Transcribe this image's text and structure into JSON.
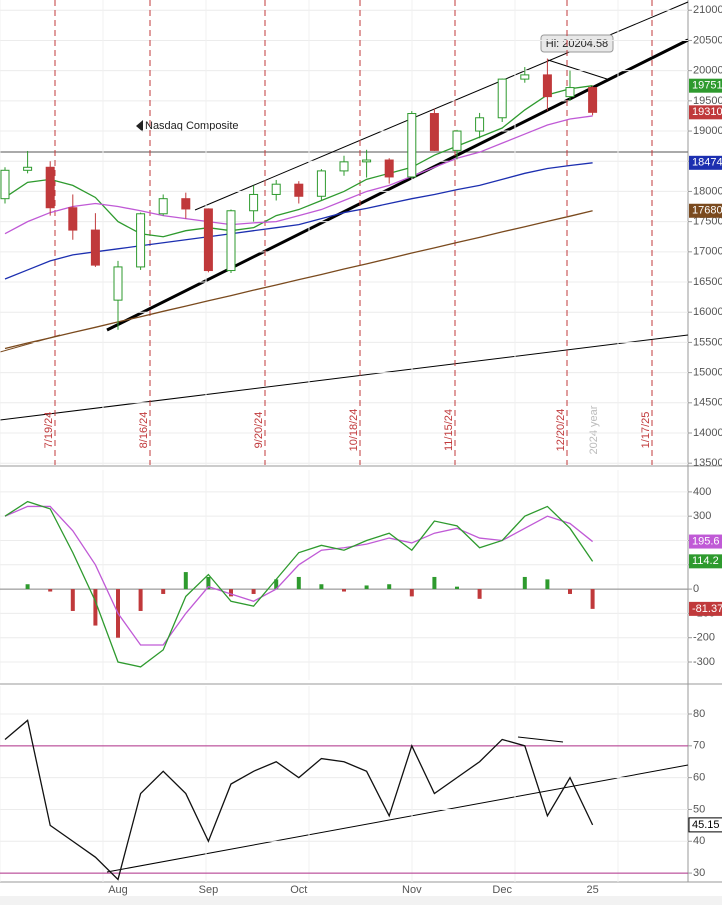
{
  "chart_data": [
    {
      "type": "candlestick",
      "title": "Nasdaq Composite",
      "annotation": "Hi: 20204.58",
      "period_label": "2024 year",
      "event_labels": [
        "7/19/24",
        "8/16/24",
        "9/20/24",
        "10/18/24",
        "11/15/24",
        "12/20/24",
        "1/17/25"
      ],
      "categories": [
        null,
        null,
        null,
        null,
        null,
        "Aug",
        null,
        null,
        null,
        "Sep",
        null,
        null,
        null,
        "Oct",
        null,
        null,
        null,
        null,
        "Nov",
        null,
        null,
        null,
        "Dec",
        null,
        null,
        null,
        "25"
      ],
      "open": [
        17880,
        18350,
        18400,
        17730,
        17360,
        16200,
        16750,
        17630,
        17880,
        17710,
        16690,
        17680,
        17950,
        18120,
        17920,
        18340,
        18490,
        18520,
        18240,
        19290,
        18680,
        19000,
        19220,
        19860,
        19930,
        19570,
        19720
      ],
      "high": [
        18400,
        18670,
        18500,
        17950,
        17640,
        16850,
        17650,
        17950,
        17980,
        17720,
        17700,
        18100,
        18190,
        18170,
        18370,
        18590,
        18690,
        18550,
        19330,
        19370,
        19020,
        19300,
        19870,
        20060,
        20200,
        20000,
        19740
      ],
      "low": [
        17800,
        18300,
        17600,
        17200,
        16750,
        15710,
        16700,
        17600,
        17550,
        16660,
        16650,
        17500,
        17850,
        17800,
        17850,
        18260,
        18230,
        18130,
        18220,
        18670,
        18530,
        18880,
        19150,
        19800,
        19340,
        19500,
        19260
      ],
      "close": [
        18350,
        18400,
        17730,
        17360,
        16780,
        16750,
        17630,
        17880,
        17710,
        16690,
        17680,
        17950,
        18120,
        17920,
        18340,
        18490,
        18520,
        18240,
        19290,
        18680,
        19000,
        19220,
        19860,
        19930,
        19570,
        19720,
        19310
      ],
      "color_up": "#2e9a2e",
      "color_down": "#c0393b",
      "series": [
        {
          "color": "#2e9a2e",
          "values": [
            17900,
            18150,
            18200,
            18100,
            17900,
            17500,
            17300,
            17250,
            17350,
            17400,
            17350,
            17400,
            17600,
            17700,
            17850,
            18000,
            18200,
            18300,
            18400,
            18600,
            18750,
            18900,
            19050,
            19350,
            19600,
            19700,
            19751
          ],
          "badge": true
        },
        {
          "color": "#c05ad6",
          "values": [
            17300,
            17500,
            17650,
            17750,
            17800,
            17750,
            17680,
            17600,
            17550,
            17500,
            17450,
            17480,
            17500,
            17600,
            17700,
            17850,
            18000,
            18100,
            18250,
            18400,
            18550,
            18650,
            18800,
            18950,
            19100,
            19200,
            19250
          ],
          "badge": false
        },
        {
          "color": "#1c2fb0",
          "values": [
            16550,
            16700,
            16850,
            16950,
            17000,
            17050,
            17100,
            17150,
            17200,
            17250,
            17300,
            17350,
            17400,
            17450,
            17550,
            17650,
            17720,
            17800,
            17880,
            17950,
            18030,
            18100,
            18200,
            18300,
            18380,
            18430,
            18474
          ],
          "badge": true
        },
        {
          "color": "#7a4a1e",
          "values": [
            15400,
            15490,
            15575,
            15665,
            15750,
            15840,
            15925,
            16015,
            16100,
            16190,
            16275,
            16365,
            16450,
            16540,
            16625,
            16715,
            16800,
            16890,
            16980,
            17065,
            17155,
            17240,
            17330,
            17415,
            17505,
            17590,
            17680
          ],
          "badge": true
        }
      ],
      "ylim": [
        13470,
        21170
      ],
      "yticks": [
        21000,
        20500,
        20000,
        19500,
        19000,
        18500,
        18000,
        17500,
        17000,
        16500,
        16000,
        15500,
        15000,
        14500,
        14000,
        13500
      ]
    },
    {
      "type": "macd",
      "series": [
        {
          "color": "#c05ad6",
          "values": [
            300,
            340,
            340,
            240,
            100,
            -100,
            -230,
            -230,
            -100,
            10,
            -20,
            -50,
            0,
            100,
            160,
            170,
            185,
            210,
            190,
            230,
            250,
            210,
            200,
            250,
            300,
            270,
            195.6
          ]
        },
        {
          "color": "#2e9a2e",
          "values": [
            300,
            360,
            330,
            150,
            -50,
            -300,
            -320,
            -250,
            -30,
            60,
            -50,
            -70,
            40,
            150,
            180,
            160,
            200,
            230,
            160,
            280,
            260,
            170,
            200,
            300,
            340,
            250,
            114.2
          ]
        }
      ],
      "histogram": [
        0,
        20,
        -10,
        -90,
        -150,
        -200,
        -90,
        -20,
        70,
        50,
        -30,
        -20,
        40,
        50,
        20,
        -10,
        15,
        20,
        -30,
        50,
        10,
        -40,
        0,
        50,
        40,
        -20,
        -81.37
      ],
      "ylim": [
        -374,
        490
      ],
      "yticks": [
        400,
        300,
        200,
        100,
        0,
        -100,
        -200,
        -300
      ]
    },
    {
      "type": "rsi",
      "series": [
        {
          "color": "#111111",
          "values": [
            72,
            78,
            45,
            40,
            35,
            28,
            55,
            62,
            55,
            40,
            58,
            62,
            65,
            60,
            66,
            65,
            62,
            48,
            70,
            55,
            60,
            65,
            72,
            70,
            48,
            60,
            45.15
          ]
        }
      ],
      "ylim": [
        27.2,
        88.8
      ],
      "yticks": [
        80,
        70,
        60,
        50,
        40,
        30
      ],
      "bands": [
        70,
        30
      ]
    }
  ]
}
